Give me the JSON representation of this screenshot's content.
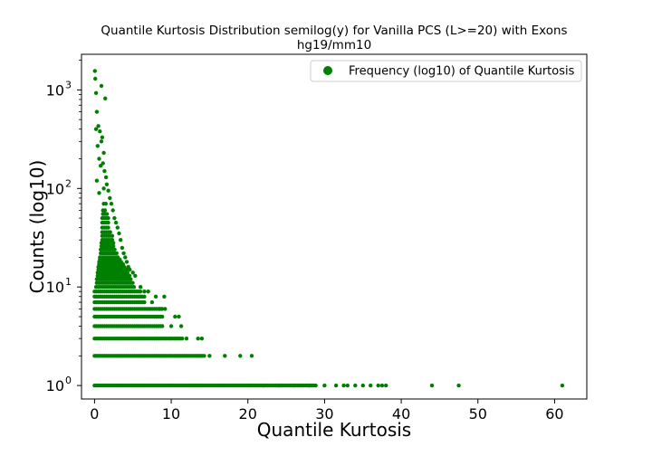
{
  "chart_data": {
    "type": "scatter",
    "title": "Quantile Kurtosis Distribution semilog(y) for Vanilla PCS (L>=20) with Exons",
    "subtitle": "hg19/mm10",
    "xlabel": "Quantile Kurtosis",
    "ylabel": "Counts (log10)",
    "xlim": [
      -1.7,
      64.2
    ],
    "ylim": [
      0.73,
      2300
    ],
    "yscale": "log",
    "x_ticks": [
      0,
      10,
      20,
      30,
      40,
      50,
      60
    ],
    "y_ticks": [
      1,
      10,
      100,
      1000
    ],
    "y_tick_labels": [
      {
        "base": "10",
        "exp": "0"
      },
      {
        "base": "10",
        "exp": "1"
      },
      {
        "base": "10",
        "exp": "2"
      },
      {
        "base": "10",
        "exp": "3"
      }
    ],
    "grid": false,
    "legend": {
      "position": "top-right",
      "entries": [
        "Frequency (log10) of Quantile Kurtosis"
      ]
    },
    "color": "#008000",
    "series": [
      {
        "name": "Frequency (log10) of Quantile Kurtosis",
        "points": [
          [
            0.05,
            1560
          ],
          [
            0.1,
            1300
          ],
          [
            0.2,
            930
          ],
          [
            0.3,
            600
          ],
          [
            0.5,
            430
          ],
          [
            0.7,
            380
          ],
          [
            0.4,
            270
          ],
          [
            0.9,
            300
          ],
          [
            1.0,
            330
          ],
          [
            1.2,
            230
          ],
          [
            0.6,
            200
          ],
          [
            1.1,
            180
          ],
          [
            1.3,
            150
          ],
          [
            1.5,
            130
          ],
          [
            0.8,
            170
          ],
          [
            1.6,
            110
          ],
          [
            1.8,
            95
          ],
          [
            0.3,
            120
          ],
          [
            2.0,
            80
          ],
          [
            2.2,
            70
          ],
          [
            2.4,
            60
          ],
          [
            0.6,
            90
          ],
          [
            1.2,
            100
          ],
          [
            2.6,
            50
          ],
          [
            2.8,
            45
          ],
          [
            3.0,
            40
          ],
          [
            3.2,
            35
          ],
          [
            3.4,
            30
          ],
          [
            3.6,
            25
          ],
          [
            3.8,
            22
          ],
          [
            4.0,
            20
          ],
          [
            4.2,
            18
          ],
          [
            4.4,
            16
          ],
          [
            4.6,
            15
          ],
          [
            5.0,
            14
          ],
          [
            5.3,
            13
          ],
          [
            0.9,
            1100
          ],
          [
            1.4,
            820
          ],
          [
            0.2,
            400
          ],
          [
            6.0,
            10
          ],
          [
            6.5,
            9
          ],
          [
            7.0,
            9
          ],
          [
            8.0,
            8
          ],
          [
            9.1,
            8
          ],
          [
            7.5,
            7
          ],
          [
            8.5,
            6
          ],
          [
            9.2,
            6
          ],
          [
            10.5,
            5
          ],
          [
            11.0,
            5
          ],
          [
            10.0,
            4
          ],
          [
            11.3,
            4
          ],
          [
            12.0,
            3
          ],
          [
            13.5,
            3
          ],
          [
            14.0,
            3
          ],
          [
            15.0,
            2
          ],
          [
            17.0,
            2
          ],
          [
            19.0,
            2
          ],
          [
            20.5,
            2
          ],
          [
            22.0,
            1
          ],
          [
            24.0,
            1
          ],
          [
            26.0,
            1
          ],
          [
            28.0,
            1
          ],
          [
            30.0,
            1
          ],
          [
            31.5,
            1
          ],
          [
            32.5,
            1
          ],
          [
            33.0,
            1
          ],
          [
            34.0,
            1
          ],
          [
            35.0,
            1
          ],
          [
            36.0,
            1
          ],
          [
            37.0,
            1
          ],
          [
            37.5,
            1
          ],
          [
            38.0,
            1
          ],
          [
            44.0,
            1
          ],
          [
            47.5,
            1
          ],
          [
            61.0,
            1
          ]
        ],
        "bands": [
          {
            "y": 1,
            "x_min": 0.0,
            "x_max": 29.0
          },
          {
            "y": 2,
            "x_min": 0.0,
            "x_max": 14.5
          },
          {
            "y": 3,
            "x_min": 0.0,
            "x_max": 11.5
          },
          {
            "y": 4,
            "x_min": 0.0,
            "x_max": 9.0
          },
          {
            "y": 5,
            "x_min": 0.0,
            "x_max": 9.0
          },
          {
            "y": 6,
            "x_min": 0.0,
            "x_max": 9.0
          },
          {
            "y": 7,
            "x_min": 0.0,
            "x_max": 6.5
          },
          {
            "y": 8,
            "x_min": 0.0,
            "x_max": 6.5
          },
          {
            "y": 9,
            "x_min": 0.0,
            "x_max": 6.2
          },
          {
            "y": 10,
            "x_min": 0.2,
            "x_max": 5.2
          },
          {
            "y": 11,
            "x_min": 0.3,
            "x_max": 5.0
          },
          {
            "y": 12,
            "x_min": 0.3,
            "x_max": 4.8
          },
          {
            "y": 13,
            "x_min": 0.4,
            "x_max": 4.6
          },
          {
            "y": 14,
            "x_min": 0.4,
            "x_max": 4.4
          },
          {
            "y": 15,
            "x_min": 0.5,
            "x_max": 4.2
          },
          {
            "y": 16,
            "x_min": 0.5,
            "x_max": 4.0
          },
          {
            "y": 17,
            "x_min": 0.6,
            "x_max": 3.8
          },
          {
            "y": 18,
            "x_min": 0.6,
            "x_max": 3.6
          },
          {
            "y": 19,
            "x_min": 0.7,
            "x_max": 3.4
          },
          {
            "y": 20,
            "x_min": 0.7,
            "x_max": 3.2
          },
          {
            "y": 22,
            "x_min": 0.8,
            "x_max": 3.0
          },
          {
            "y": 24,
            "x_min": 0.8,
            "x_max": 2.8
          },
          {
            "y": 26,
            "x_min": 0.9,
            "x_max": 2.7
          },
          {
            "y": 28,
            "x_min": 0.9,
            "x_max": 2.6
          },
          {
            "y": 30,
            "x_min": 1.0,
            "x_max": 2.5
          },
          {
            "y": 33,
            "x_min": 1.0,
            "x_max": 2.3
          },
          {
            "y": 36,
            "x_min": 1.0,
            "x_max": 2.2
          },
          {
            "y": 40,
            "x_min": 1.0,
            "x_max": 2.0
          },
          {
            "y": 45,
            "x_min": 1.0,
            "x_max": 1.9
          },
          {
            "y": 50,
            "x_min": 1.0,
            "x_max": 1.8
          },
          {
            "y": 55,
            "x_min": 1.1,
            "x_max": 1.7
          },
          {
            "y": 60,
            "x_min": 1.1,
            "x_max": 1.6
          },
          {
            "y": 70,
            "x_min": 1.2,
            "x_max": 1.5
          }
        ]
      }
    ]
  }
}
